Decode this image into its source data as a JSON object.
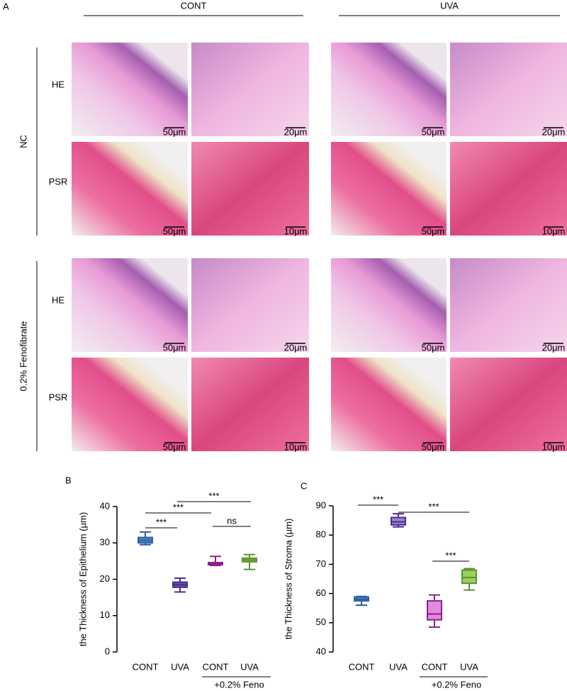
{
  "panel_a": {
    "label": "A",
    "columns": [
      "CONT",
      "UVA"
    ],
    "groups": [
      "NC",
      "0.2% Fenofibrate"
    ],
    "rows": [
      "HE",
      "PSR",
      "HE",
      "PSR"
    ],
    "scale_bars": [
      [
        "50μm",
        "20μm",
        "50μm",
        "20μm"
      ],
      [
        "50μm",
        "10μm",
        "50μm",
        "10μm"
      ],
      [
        "50μm",
        "20μm",
        "50μm",
        "20μm"
      ],
      [
        "50μm",
        "10μm",
        "50μm",
        "10μm"
      ]
    ]
  },
  "chart_data": [
    {
      "type": "box",
      "panel": "B",
      "ylabel": "the Thickness of Epithelium (μm)",
      "categories": [
        "CONT",
        "UVA",
        "CONT",
        "UVA"
      ],
      "group_label": "+0.2% Feno",
      "ylim": [
        0,
        40
      ],
      "yticks": [
        0,
        10,
        20,
        30,
        40
      ],
      "annotations": [
        "***",
        "***",
        "***",
        "ns"
      ],
      "boxes": [
        {
          "min": 29.5,
          "q1": 30,
          "median": 30.7,
          "q3": 31.5,
          "max": 33,
          "color": "#2e5fa3",
          "fill": "#4f80c4"
        },
        {
          "min": 16.5,
          "q1": 17.8,
          "median": 18.5,
          "q3": 19.2,
          "max": 20.3,
          "color": "#4b2d8f",
          "fill": "#6b4db0"
        },
        {
          "min": 23.8,
          "q1": 24,
          "median": 24.3,
          "q3": 24.6,
          "max": 26.3,
          "color": "#8e2387",
          "fill": "#b04aa8"
        },
        {
          "min": 22.7,
          "q1": 24.8,
          "median": 25.3,
          "q3": 25.8,
          "max": 26.8,
          "color": "#5a9530",
          "fill": "#7cb84a"
        }
      ]
    },
    {
      "type": "box",
      "panel": "C",
      "ylabel": "the Thickness of Stroma (μm)",
      "categories": [
        "CONT",
        "UVA",
        "CONT",
        "UVA"
      ],
      "group_label": "+0.2% Feno",
      "ylim": [
        40,
        90
      ],
      "yticks": [
        40,
        50,
        60,
        70,
        80,
        90
      ],
      "annotations": [
        "***",
        "***",
        "***"
      ],
      "boxes": [
        {
          "min": 56,
          "q1": 57.5,
          "median": 58,
          "q3": 58.8,
          "max": 59,
          "color": "#2e5fa3",
          "fill": "#4f80c4"
        },
        {
          "min": 82.8,
          "q1": 83.5,
          "median": 84.5,
          "q3": 86,
          "max": 87.3,
          "color": "#4b2d8f",
          "fill": "#9a86cc"
        },
        {
          "min": 48.5,
          "q1": 51,
          "median": 53,
          "q3": 57.5,
          "max": 59.5,
          "color": "#8e2387",
          "fill": "#e08be0"
        },
        {
          "min": 61.2,
          "q1": 63.5,
          "median": 65.5,
          "q3": 68,
          "max": 68.5,
          "color": "#5a9530",
          "fill": "#9ccf5c"
        }
      ]
    }
  ]
}
